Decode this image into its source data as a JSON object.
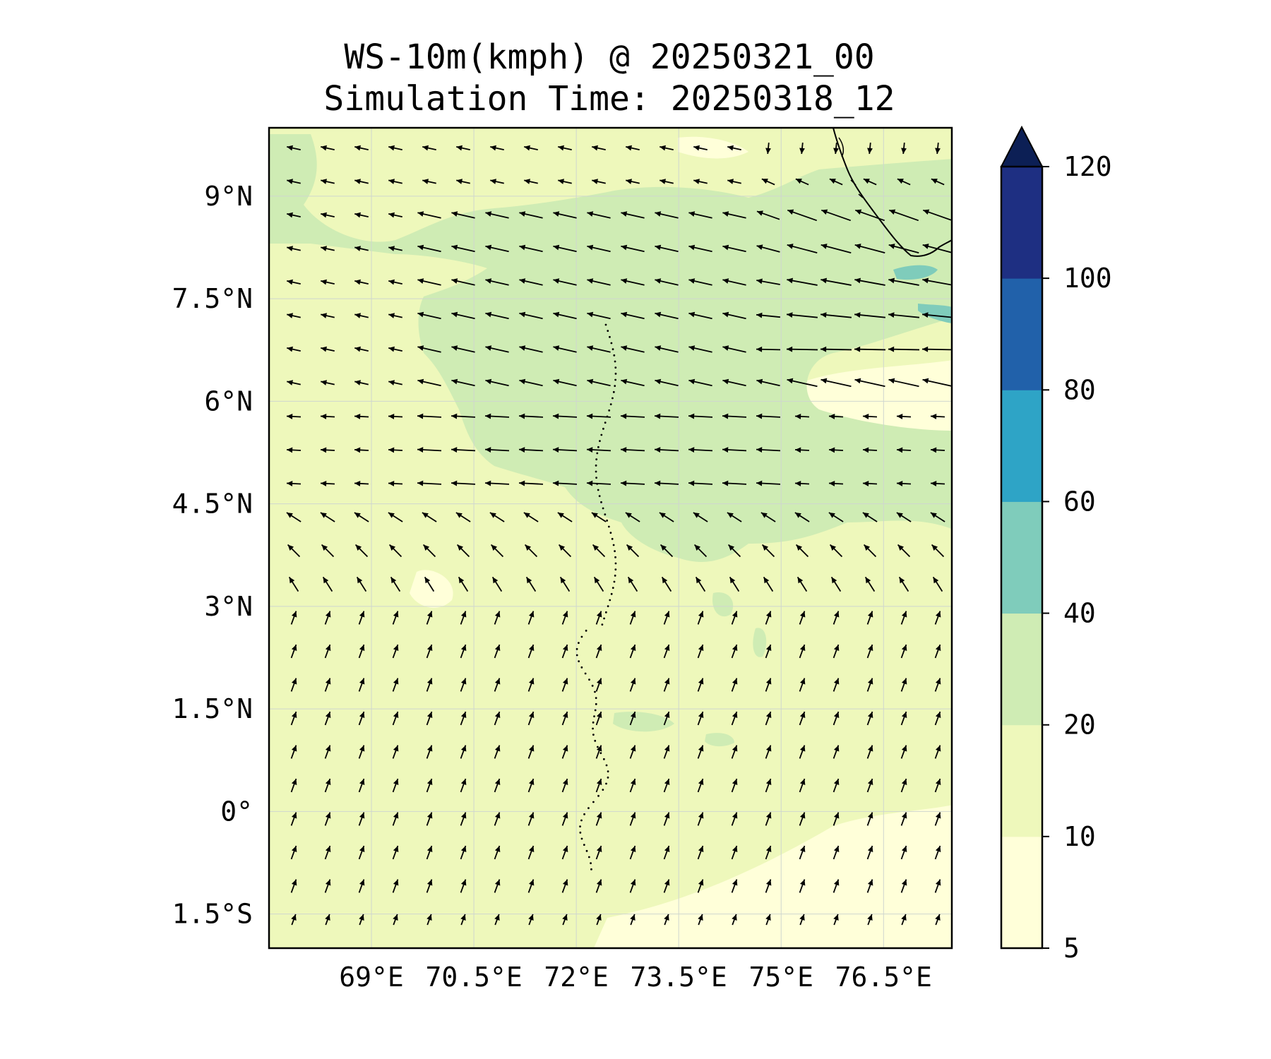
{
  "title": {
    "line1": "WS-10m(kmph) @ 20250321_00",
    "line2": "Simulation Time: 20250318_12"
  },
  "map": {
    "lon_range": [
      67.5,
      77.5
    ],
    "lat_range": [
      -2.0,
      10.0
    ],
    "x_ticks": [
      {
        "value": 69.0,
        "label": "69°E"
      },
      {
        "value": 70.5,
        "label": "70.5°E"
      },
      {
        "value": 72.0,
        "label": "72°E"
      },
      {
        "value": 73.5,
        "label": "73.5°E"
      },
      {
        "value": 75.0,
        "label": "75°E"
      },
      {
        "value": 76.5,
        "label": "76.5°E"
      }
    ],
    "y_ticks": [
      {
        "value": 9.0,
        "label": "9°N"
      },
      {
        "value": 7.5,
        "label": "7.5°N"
      },
      {
        "value": 6.0,
        "label": "6°N"
      },
      {
        "value": 4.5,
        "label": "4.5°N"
      },
      {
        "value": 3.0,
        "label": "3°N"
      },
      {
        "value": 1.5,
        "label": "1.5°N"
      },
      {
        "value": 0.0,
        "label": "0°"
      },
      {
        "value": -1.5,
        "label": "1.5°S"
      }
    ],
    "gridlines": true,
    "field": "10 m wind speed",
    "vectors": "wind direction arrows"
  },
  "colorbar": {
    "levels": [
      {
        "from": 5,
        "to": 10,
        "color": "#ffffd9",
        "label": "5"
      },
      {
        "from": 10,
        "to": 20,
        "color": "#eef8bb",
        "label": "10"
      },
      {
        "from": 20,
        "to": 40,
        "color": "#cfecb4",
        "label": "20"
      },
      {
        "from": 40,
        "to": 60,
        "color": "#7fccbb",
        "label": "40"
      },
      {
        "from": 60,
        "to": 80,
        "color": "#2ea4c6",
        "label": "60"
      },
      {
        "from": 80,
        "to": 100,
        "color": "#2161aa",
        "label": "80"
      },
      {
        "from": 100,
        "to": 120,
        "color": "#1e2f82",
        "label": "100"
      }
    ],
    "top_label": "120",
    "extend_color": "#0c1f55",
    "extend": "max"
  },
  "colors": {
    "arrow": "#000000",
    "coastline": "#000000",
    "grid": "#cfd6cf"
  }
}
